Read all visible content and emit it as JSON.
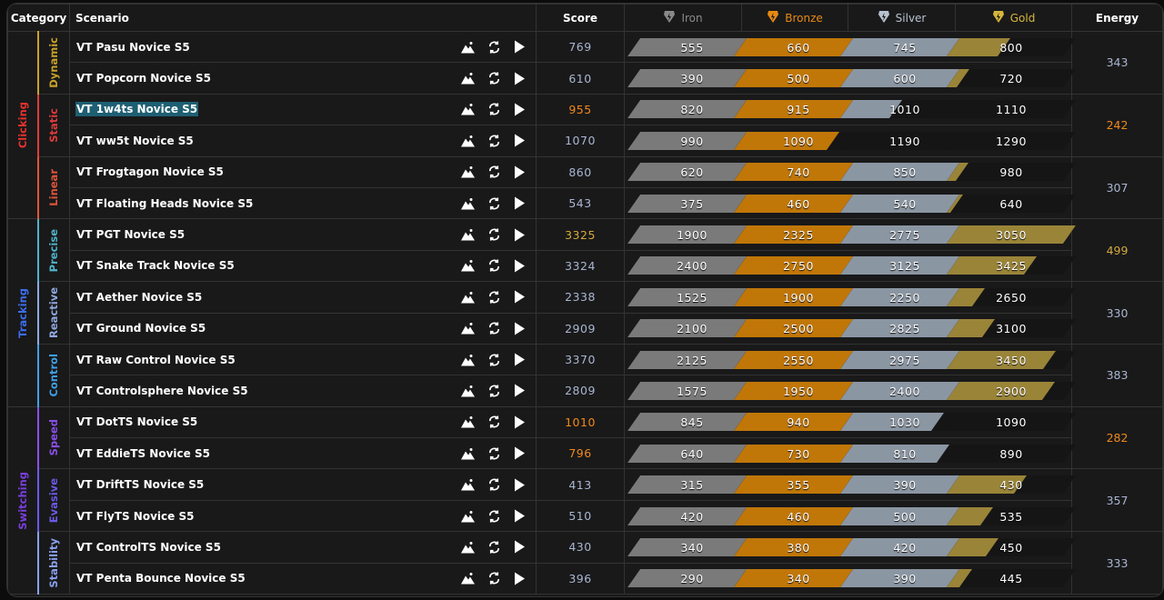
{
  "header": {
    "category": "Category",
    "scenario": "Scenario",
    "score": "Score",
    "energy": "Energy",
    "ranks": [
      {
        "label": "Iron",
        "color": "#8a8a8a",
        "icon": "iron-rank-icon"
      },
      {
        "label": "Bronze",
        "color": "#e88a12",
        "icon": "bronze-rank-icon"
      },
      {
        "label": "Silver",
        "color": "#b8c2cf",
        "icon": "silver-rank-icon"
      },
      {
        "label": "Gold",
        "color": "#d6b63a",
        "icon": "gold-rank-icon"
      }
    ]
  },
  "bar_colors": [
    "#7a7a7a",
    "#c07708",
    "#8b96a3",
    "#9a8438"
  ],
  "categories": [
    {
      "label": "Clicking",
      "color": "#e8322d",
      "subs": [
        {
          "label": "Dynamic",
          "color": "#c9a227",
          "energy": "343",
          "energy_color": "#a9b6d0",
          "rows": [
            {
              "name": "VT Pasu Novice S5",
              "score": "769",
              "score_color": "#a9b6d0",
              "thresholds": [
                "555",
                "660",
                "745",
                "800"
              ]
            },
            {
              "name": "VT Popcorn Novice S5",
              "score": "610",
              "score_color": "#a9b6d0",
              "thresholds": [
                "390",
                "500",
                "600",
                "720"
              ]
            }
          ]
        },
        {
          "label": "Static",
          "color": "#e03b3b",
          "energy": "242",
          "energy_color": "#f08a1a",
          "rows": [
            {
              "name": "VT 1w4ts Novice S5",
              "score": "955",
              "score_color": "#f08a1a",
              "thresholds": [
                "820",
                "915",
                "1010",
                "1110"
              ],
              "selected": true
            },
            {
              "name": "VT ww5t Novice S5",
              "score": "1070",
              "score_color": "#a9b6d0",
              "thresholds": [
                "990",
                "1090",
                "1190",
                "1290"
              ]
            }
          ]
        },
        {
          "label": "Linear",
          "color": "#e0553a",
          "energy": "307",
          "energy_color": "#a9b6d0",
          "rows": [
            {
              "name": "VT Frogtagon Novice S5",
              "score": "860",
              "score_color": "#a9b6d0",
              "thresholds": [
                "620",
                "740",
                "850",
                "980"
              ]
            },
            {
              "name": "VT Floating Heads Novice S5",
              "score": "543",
              "score_color": "#a9b6d0",
              "thresholds": [
                "375",
                "460",
                "540",
                "640"
              ]
            }
          ]
        }
      ]
    },
    {
      "label": "Tracking",
      "color": "#3b6ef0",
      "subs": [
        {
          "label": "Precise",
          "color": "#4fb3c9",
          "energy": "499",
          "energy_color": "#d4a93c",
          "rows": [
            {
              "name": "VT PGT Novice S5",
              "score": "3325",
              "score_color": "#d4a93c",
              "thresholds": [
                "1900",
                "2325",
                "2775",
                "3050"
              ]
            },
            {
              "name": "VT Snake Track Novice S5",
              "score": "3324",
              "score_color": "#a9b6d0",
              "thresholds": [
                "2400",
                "2750",
                "3125",
                "3425"
              ]
            }
          ]
        },
        {
          "label": "Reactive",
          "color": "#8fa8e0",
          "energy": "330",
          "energy_color": "#a9b6d0",
          "rows": [
            {
              "name": "VT Aether Novice S5",
              "score": "2338",
              "score_color": "#a9b6d0",
              "thresholds": [
                "1525",
                "1900",
                "2250",
                "2650"
              ]
            },
            {
              "name": "VT Ground Novice S5",
              "score": "2909",
              "score_color": "#a9b6d0",
              "thresholds": [
                "2100",
                "2500",
                "2825",
                "3100"
              ]
            }
          ]
        },
        {
          "label": "Control",
          "color": "#3fa0e8",
          "energy": "383",
          "energy_color": "#a9b6d0",
          "rows": [
            {
              "name": "VT Raw Control Novice S5",
              "score": "3370",
              "score_color": "#a9b6d0",
              "thresholds": [
                "2125",
                "2550",
                "2975",
                "3450"
              ]
            },
            {
              "name": "VT Controlsphere Novice S5",
              "score": "2809",
              "score_color": "#a9b6d0",
              "thresholds": [
                "1575",
                "1950",
                "2400",
                "2900"
              ]
            }
          ]
        }
      ]
    },
    {
      "label": "Switching",
      "color": "#7a3fe0",
      "subs": [
        {
          "label": "Speed",
          "color": "#8a4fe8",
          "energy": "282",
          "energy_color": "#f08a1a",
          "rows": [
            {
              "name": "VT DotTS Novice S5",
              "score": "1010",
              "score_color": "#f08a1a",
              "thresholds": [
                "845",
                "940",
                "1030",
                "1090"
              ]
            },
            {
              "name": "VT EddieTS Novice S5",
              "score": "796",
              "score_color": "#f08a1a",
              "thresholds": [
                "640",
                "730",
                "810",
                "890"
              ]
            }
          ]
        },
        {
          "label": "Evasive",
          "color": "#6a5ae8",
          "energy": "357",
          "energy_color": "#a9b6d0",
          "rows": [
            {
              "name": "VT DriftTS Novice S5",
              "score": "413",
              "score_color": "#a9b6d0",
              "thresholds": [
                "315",
                "355",
                "390",
                "430"
              ]
            },
            {
              "name": "VT FlyTS Novice S5",
              "score": "510",
              "score_color": "#a9b6d0",
              "thresholds": [
                "420",
                "460",
                "500",
                "535"
              ]
            }
          ]
        },
        {
          "label": "Stability",
          "color": "#8aa0f0",
          "energy": "333",
          "energy_color": "#a9b6d0",
          "rows": [
            {
              "name": "VT ControlTS Novice S5",
              "score": "430",
              "score_color": "#a9b6d0",
              "thresholds": [
                "340",
                "380",
                "420",
                "450"
              ]
            },
            {
              "name": "VT Penta Bounce Novice S5",
              "score": "396",
              "score_color": "#a9b6d0",
              "thresholds": [
                "290",
                "340",
                "390",
                "445"
              ]
            }
          ]
        }
      ]
    }
  ]
}
